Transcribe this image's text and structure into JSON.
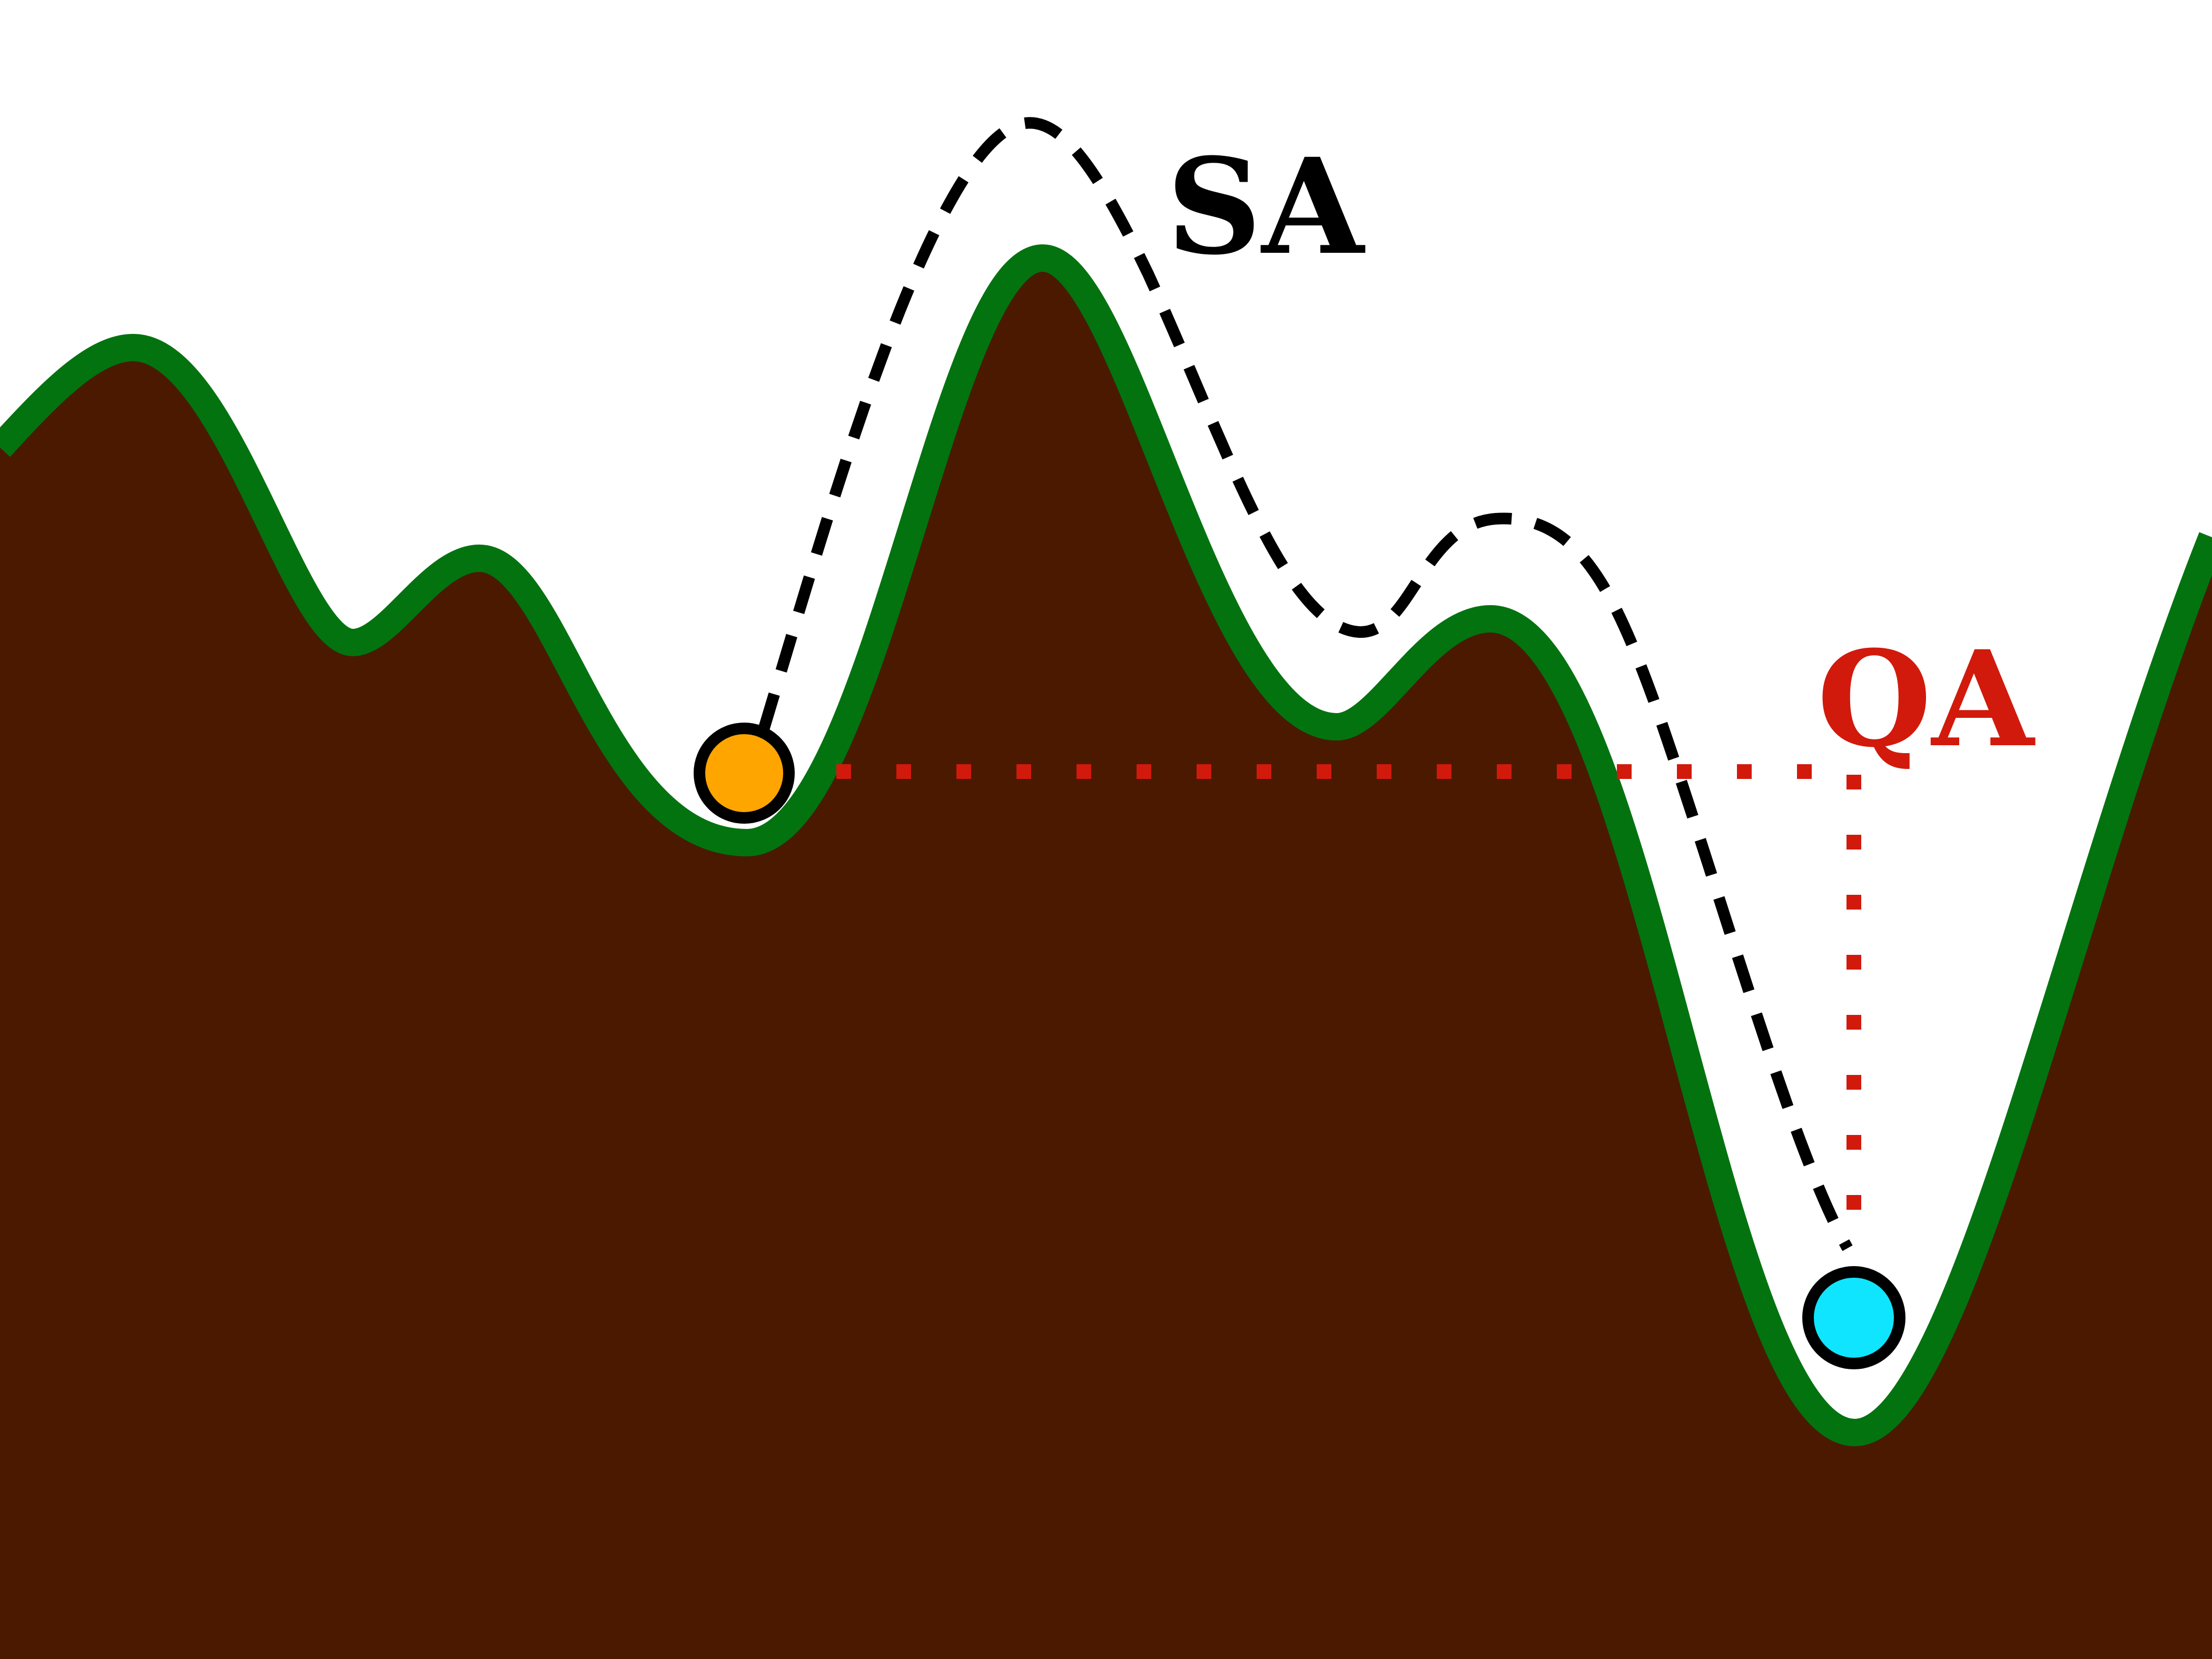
{
  "labels": {
    "sa": "SA",
    "qa": "QA"
  },
  "colors": {
    "background": "#ffffff",
    "ground_fill": "#4a1900",
    "ground_edge": "#03730f",
    "sa_path": "#000000",
    "sa_label": "#000000",
    "qa_path": "#d11a0c",
    "qa_label": "#d11a0c",
    "start_ball": "#ffa500",
    "end_ball": "#10e5ff",
    "ball_outline": "#000000"
  },
  "icons": {
    "start_ball": "orange-circle",
    "end_ball": "cyan-circle"
  }
}
